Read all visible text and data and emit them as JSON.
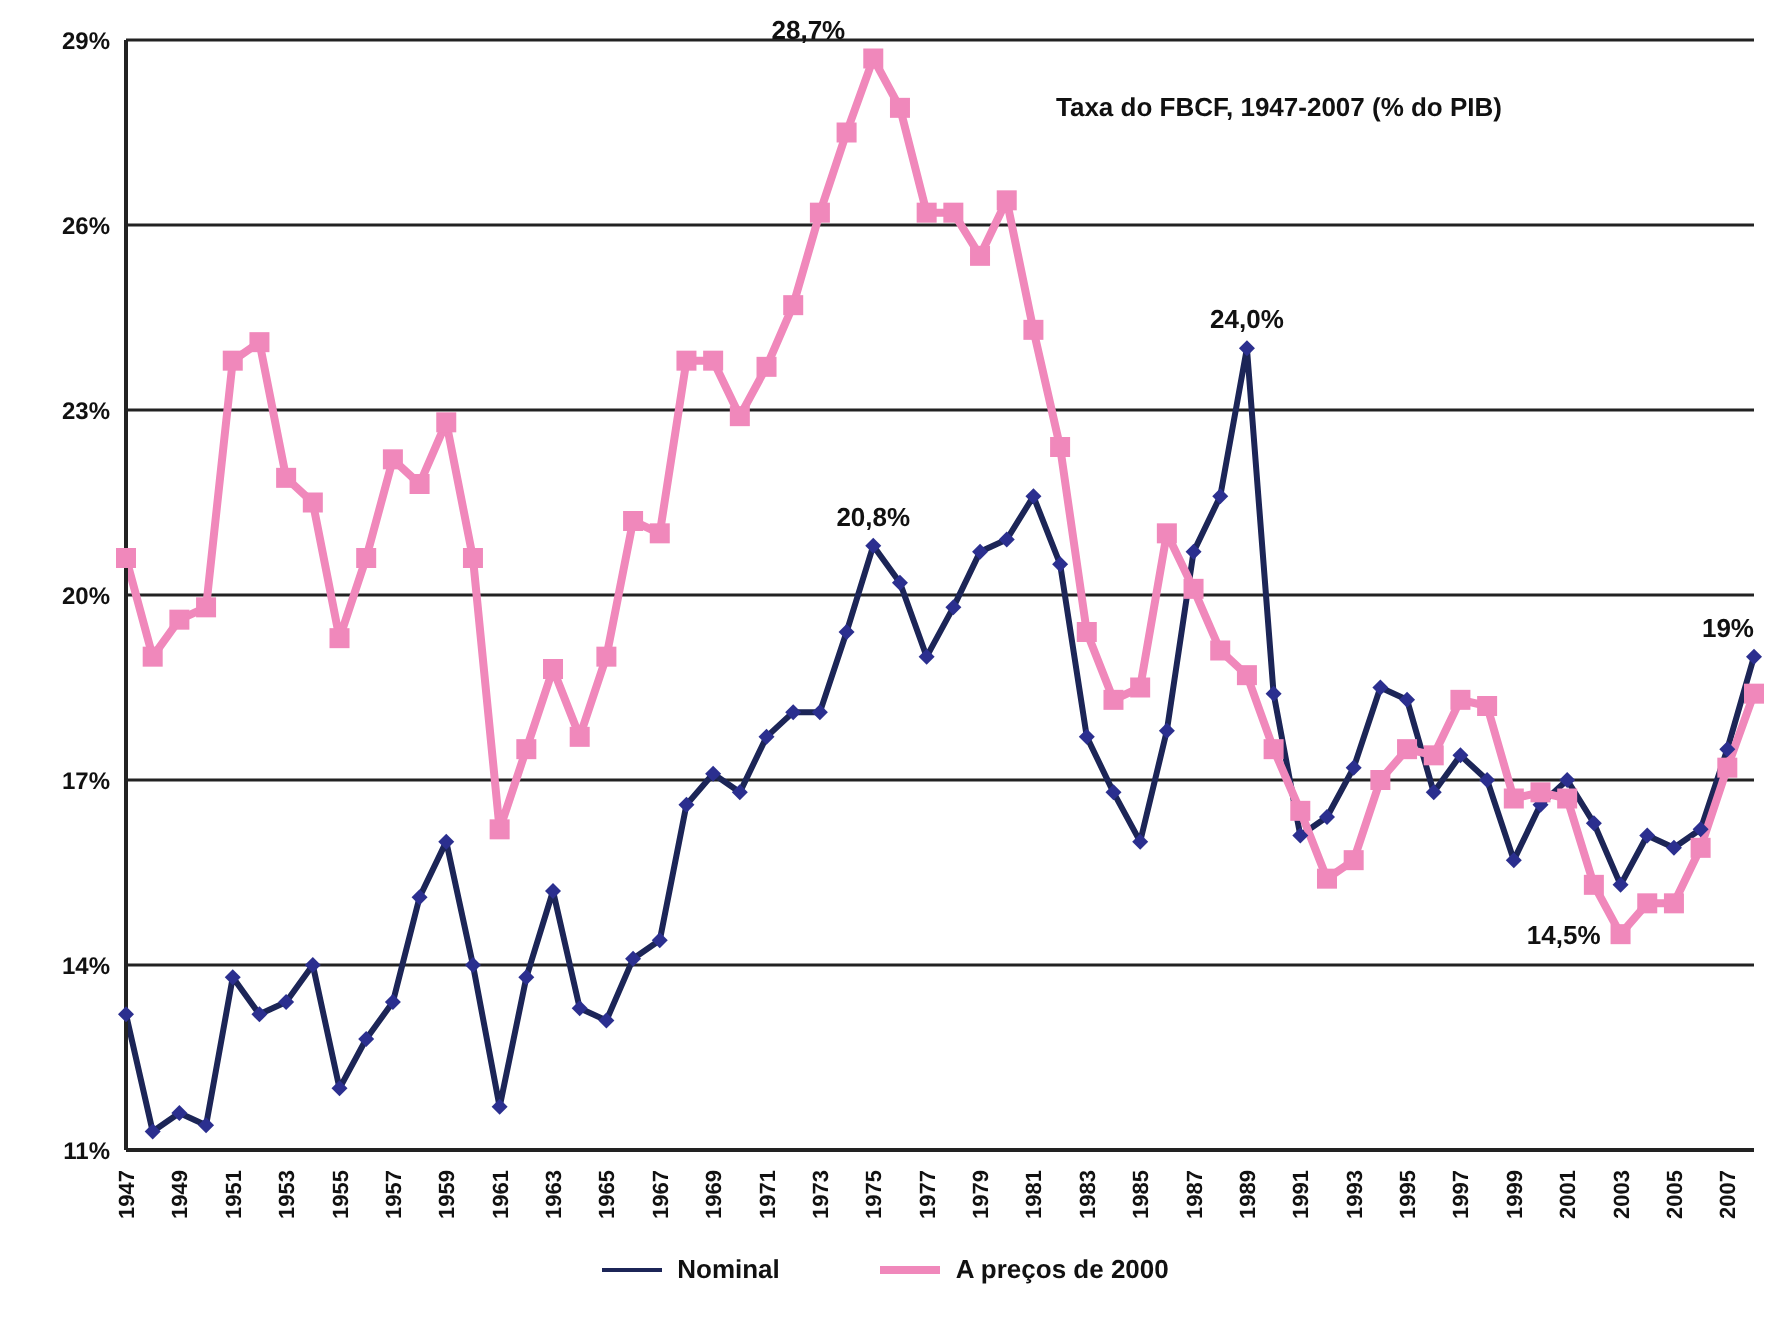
{
  "chart_data": {
    "type": "line",
    "title": "Taxa do FBCF, 1947-2007 (% do PIB)",
    "categories": [
      "1947",
      null,
      "1949",
      null,
      "1951",
      null,
      "1953",
      null,
      "1955",
      null,
      "1957",
      null,
      "1959",
      null,
      "1961",
      null,
      "1963",
      null,
      "1965",
      null,
      "1967",
      null,
      "1969",
      null,
      "1971",
      null,
      "1973",
      null,
      "1975",
      null,
      "1977",
      null,
      "1979",
      null,
      "1981",
      null,
      "1983",
      null,
      "1985",
      null,
      "1987",
      null,
      "1989",
      null,
      "1991",
      null,
      "1993",
      null,
      "1995",
      null,
      "1997",
      null,
      "1999",
      null,
      "2001",
      null,
      "2003",
      null,
      "2005",
      null,
      "2007",
      null
    ],
    "series": [
      {
        "name": "Nominal",
        "color": "#1c2557",
        "marker": "diamond",
        "values": [
          13.2,
          11.3,
          11.6,
          11.4,
          13.8,
          13.2,
          13.4,
          14.0,
          12.0,
          12.8,
          13.4,
          15.1,
          16.0,
          14.0,
          11.7,
          13.8,
          15.2,
          13.3,
          13.1,
          14.1,
          14.4,
          16.6,
          17.1,
          16.8,
          17.7,
          18.1,
          18.1,
          19.4,
          20.8,
          20.2,
          19.0,
          19.8,
          20.7,
          20.9,
          21.6,
          20.5,
          17.7,
          16.8,
          16.0,
          17.8,
          20.7,
          21.6,
          24.0,
          18.4,
          16.1,
          16.4,
          17.2,
          18.5,
          18.3,
          16.8,
          17.4,
          17.0,
          15.7,
          16.6,
          17.0,
          16.3,
          15.3,
          16.1,
          15.9,
          16.2,
          17.5,
          19
        ],
        "value_labels": [
          null,
          null,
          null,
          null,
          null,
          null,
          null,
          null,
          null,
          null,
          null,
          null,
          null,
          null,
          null,
          null,
          null,
          null,
          null,
          null,
          null,
          null,
          null,
          null,
          null,
          null,
          null,
          null,
          "20,8%",
          null,
          null,
          null,
          null,
          null,
          null,
          null,
          null,
          null,
          null,
          null,
          null,
          null,
          "24,0%",
          null,
          null,
          null,
          null,
          null,
          null,
          null,
          null,
          null,
          null,
          null,
          null,
          null,
          null,
          null,
          null,
          null,
          null,
          "19%"
        ]
      },
      {
        "name": "A preços de 2000",
        "color": "#f088bb",
        "marker": "square",
        "values": [
          20.6,
          19.0,
          19.6,
          19.8,
          23.8,
          24.1,
          21.9,
          21.5,
          19.3,
          20.6,
          22.2,
          21.8,
          22.8,
          20.6,
          16.2,
          17.5,
          18.8,
          17.7,
          19.0,
          21.2,
          21.0,
          23.8,
          23.8,
          22.9,
          23.7,
          24.7,
          26.2,
          27.5,
          28.7,
          27.9,
          26.2,
          26.2,
          25.5,
          26.4,
          24.3,
          22.4,
          19.4,
          18.3,
          18.5,
          21.0,
          20.1,
          19.1,
          18.7,
          17.5,
          16.5,
          15.4,
          15.7,
          17.0,
          17.5,
          17.4,
          18.3,
          18.2,
          16.7,
          16.8,
          16.7,
          15.3,
          14.5,
          15.0,
          15.0,
          15.9,
          17.2,
          18.4
        ],
        "value_labels": [
          null,
          null,
          null,
          null,
          null,
          null,
          null,
          null,
          null,
          null,
          null,
          null,
          null,
          null,
          null,
          null,
          null,
          null,
          null,
          null,
          null,
          null,
          null,
          null,
          null,
          null,
          null,
          null,
          "28,7%",
          null,
          null,
          null,
          null,
          null,
          null,
          null,
          null,
          null,
          null,
          null,
          null,
          null,
          null,
          null,
          null,
          null,
          null,
          null,
          null,
          null,
          null,
          null,
          null,
          null,
          null,
          null,
          "14,5%",
          null,
          null,
          null,
          null,
          null
        ]
      }
    ],
    "ylim": [
      11,
      29
    ],
    "yticks": [
      {
        "value": 11,
        "label": "11%"
      },
      {
        "value": 14,
        "label": "14%"
      },
      {
        "value": 17,
        "label": "17%"
      },
      {
        "value": 20,
        "label": "20%"
      },
      {
        "value": 23,
        "label": "23%"
      },
      {
        "value": 26,
        "label": "26%"
      },
      {
        "value": 29,
        "label": "29%"
      }
    ],
    "grid": "y",
    "legend": "bottom",
    "line_style": "solid"
  }
}
